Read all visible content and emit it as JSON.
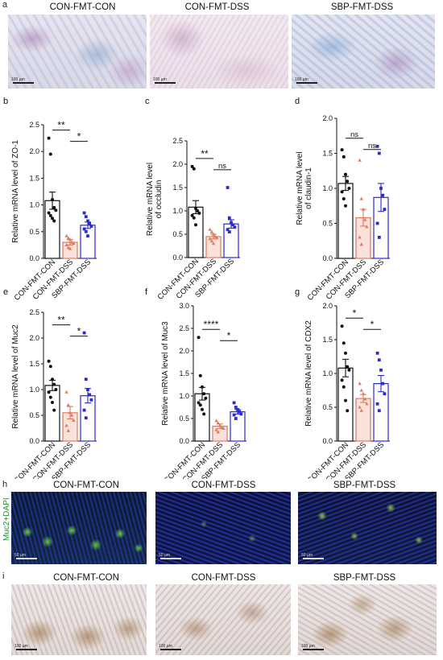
{
  "groups": [
    "CON-FMT-CON",
    "CON-FMT-DSS",
    "SBP-FMT-DSS"
  ],
  "panel_a": {
    "letter": "a",
    "scale_label": "100 µm"
  },
  "panel_h": {
    "letter": "h",
    "channel_label": "Muc2+DAPI",
    "scale_label": "50 µm"
  },
  "panel_i": {
    "letter": "i",
    "scale_label": "100 µm"
  },
  "colors": {
    "con": "#111111",
    "dss": "#e07a5f",
    "sbp": "#2a2ad0"
  },
  "chart_data": [
    {
      "id": "b",
      "letter": "b",
      "type": "bar",
      "ylabel": "Relative mRNA level of ZO-1",
      "categories": [
        "CON-FMT-CON",
        "CON-FMT-DSS",
        "SBP-FMT-DSS"
      ],
      "values": [
        1.08,
        0.3,
        0.62
      ],
      "errors": [
        0.16,
        0.05,
        0.06
      ],
      "ylim": [
        0,
        2.5
      ],
      "yticks": [
        "0.0",
        "0.5",
        "1.0",
        "1.5",
        "2.0",
        "2.5"
      ],
      "points": [
        [
          2.25,
          1.95,
          1.1,
          0.95,
          0.9,
          0.85,
          0.8,
          0.75,
          0.7
        ],
        [
          0.42,
          0.38,
          0.35,
          0.3,
          0.28,
          0.25,
          0.2,
          0.18
        ],
        [
          0.85,
          0.78,
          0.7,
          0.65,
          0.6,
          0.55,
          0.5,
          0.42
        ]
      ],
      "significance": [
        {
          "from": 0,
          "to": 1,
          "label": "**"
        },
        {
          "from": 1,
          "to": 2,
          "label": "*"
        }
      ]
    },
    {
      "id": "c",
      "letter": "c",
      "type": "bar",
      "ylabel": [
        "Relative mRNA level",
        "of occludin"
      ],
      "categories": [
        "CON-FMT-CON",
        "CON-FMT-DSS",
        "SBP-FMT-DSS"
      ],
      "values": [
        1.08,
        0.45,
        0.72
      ],
      "errors": [
        0.14,
        0.05,
        0.09
      ],
      "ylim": [
        0,
        2.5
      ],
      "yticks": [
        "0.0",
        "0.5",
        "1.0",
        "1.5",
        "2.0",
        "2.5"
      ],
      "points": [
        [
          1.95,
          1.9,
          1.05,
          1.0,
          0.95,
          0.9,
          0.85,
          0.7
        ],
        [
          0.6,
          0.55,
          0.5,
          0.45,
          0.42,
          0.4,
          0.35,
          0.3
        ],
        [
          1.5,
          0.85,
          0.75,
          0.7,
          0.65,
          0.6,
          0.55
        ]
      ],
      "significance": [
        {
          "from": 0,
          "to": 1,
          "label": "**"
        },
        {
          "from": 1,
          "to": 2,
          "label": "ns"
        }
      ]
    },
    {
      "id": "d",
      "letter": "d",
      "type": "bar",
      "ylabel": [
        "Relative mRNA level",
        "of claudin-1"
      ],
      "categories": [
        "CON-FMT-CON",
        "CON-FMT-DSS",
        "SBP-FMT-DSS"
      ],
      "values": [
        1.07,
        0.58,
        0.87
      ],
      "errors": [
        0.1,
        0.12,
        0.2
      ],
      "ylim": [
        0,
        2.0
      ],
      "yticks": [
        "0.0",
        "0.5",
        "1.0",
        "1.5",
        "2.0"
      ],
      "points": [
        [
          1.55,
          1.45,
          1.2,
          1.1,
          1.0,
          0.95,
          0.85,
          0.75
        ],
        [
          1.4,
          0.85,
          0.7,
          0.55,
          0.45,
          0.3,
          0.2
        ],
        [
          1.6,
          1.5,
          1.0,
          0.9,
          0.7,
          0.5,
          0.3
        ]
      ],
      "significance": [
        {
          "from": 0,
          "to": 1,
          "label": "ns"
        },
        {
          "from": 1,
          "to": 2,
          "label": "ns"
        }
      ]
    },
    {
      "id": "e",
      "letter": "e",
      "type": "bar",
      "ylabel": "Relative mRNA level of Muc2",
      "categories": [
        "CON-FMT-CON",
        "CON-FMT-DSS",
        "SBP-FMT-DSS"
      ],
      "values": [
        1.08,
        0.55,
        0.88
      ],
      "errors": [
        0.1,
        0.12,
        0.14
      ],
      "ylim": [
        0,
        2.5
      ],
      "yticks": [
        "0.0",
        "0.5",
        "1.0",
        "1.5",
        "2.0",
        "2.5"
      ],
      "points": [
        [
          1.55,
          1.45,
          1.2,
          1.1,
          1.0,
          0.95,
          0.85,
          0.75,
          0.6
        ],
        [
          0.95,
          0.7,
          0.55,
          0.5,
          0.4,
          0.3,
          0.2
        ],
        [
          2.1,
          1.2,
          1.0,
          0.9,
          0.8,
          0.6,
          0.45
        ]
      ],
      "significance": [
        {
          "from": 0,
          "to": 1,
          "label": "**"
        },
        {
          "from": 1,
          "to": 2,
          "label": "*"
        }
      ]
    },
    {
      "id": "f",
      "letter": "f",
      "type": "bar",
      "ylabel": "Relative mRNA level of Muc3",
      "categories": [
        "CON-FMT-CON",
        "CON-FMT-DSS",
        "SBP-FMT-DSS"
      ],
      "values": [
        1.05,
        0.33,
        0.65
      ],
      "errors": [
        0.14,
        0.05,
        0.05
      ],
      "ylim": [
        0,
        3.0
      ],
      "yticks": [
        "0.0",
        "0.5",
        "1.0",
        "1.5",
        "2.0",
        "2.5",
        "3.0"
      ],
      "points": [
        [
          2.3,
          1.45,
          1.2,
          1.05,
          0.95,
          0.85,
          0.8,
          0.7,
          0.6
        ],
        [
          0.45,
          0.4,
          0.35,
          0.3,
          0.28,
          0.25,
          0.2
        ],
        [
          0.85,
          0.75,
          0.7,
          0.65,
          0.6,
          0.58,
          0.5
        ]
      ],
      "significance": [
        {
          "from": 0,
          "to": 1,
          "label": "****"
        },
        {
          "from": 1,
          "to": 2,
          "label": "*"
        }
      ]
    },
    {
      "id": "g",
      "letter": "g",
      "type": "bar",
      "ylabel": "Relative mRNA level of CDX2",
      "categories": [
        "CON-FMT-CON",
        "CON-FMT-DSS",
        "SBP-FMT-DSS"
      ],
      "values": [
        1.08,
        0.63,
        0.85
      ],
      "errors": [
        0.13,
        0.06,
        0.12
      ],
      "ylim": [
        0,
        2.0
      ],
      "yticks": [
        "0.0",
        "0.5",
        "1.0",
        "1.5",
        "2.0"
      ],
      "points": [
        [
          1.7,
          1.45,
          1.3,
          1.1,
          1.05,
          0.9,
          0.8,
          0.6,
          0.45
        ],
        [
          0.85,
          0.75,
          0.7,
          0.62,
          0.55,
          0.5,
          0.45
        ],
        [
          1.3,
          1.2,
          1.05,
          0.85,
          0.7,
          0.55,
          0.45
        ]
      ],
      "significance": [
        {
          "from": 0,
          "to": 1,
          "label": "*"
        },
        {
          "from": 1,
          "to": 2,
          "label": "*"
        }
      ]
    }
  ]
}
